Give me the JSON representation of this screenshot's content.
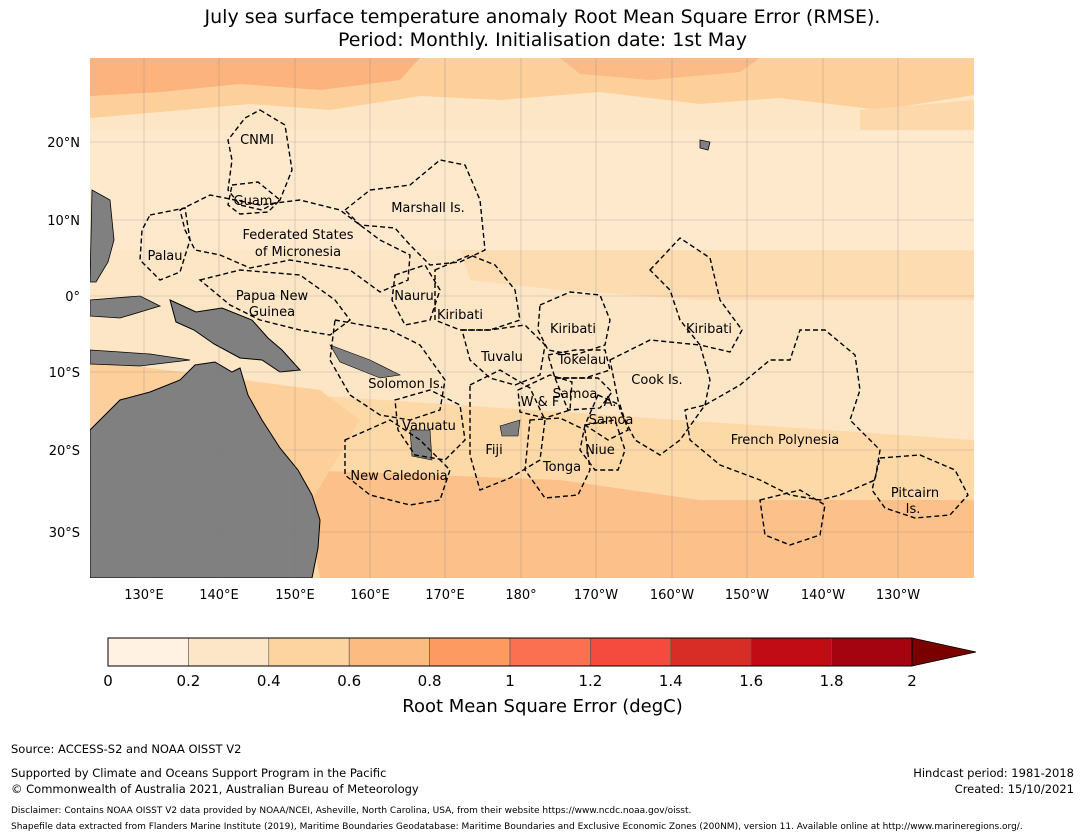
{
  "title": {
    "line1": "July sea surface temperature anomaly Root Mean Square Error (RMSE).",
    "line2": "Period: Monthly. Initialisation date: 1st May"
  },
  "map": {
    "lat_ticks": [
      "20°N",
      "10°N",
      "0°",
      "10°S",
      "20°S",
      "30°S"
    ],
    "lon_ticks": [
      "130°E",
      "140°E",
      "150°E",
      "160°E",
      "170°E",
      "180°",
      "170°W",
      "160°W",
      "150°W",
      "140°W",
      "130°W"
    ],
    "regions": [
      "CNMI",
      "Guam",
      "Marshall Is.",
      "Federated States",
      "of Micronesia",
      "Palau",
      "Papua New",
      "Guinea",
      "Nauru",
      "Kiribati",
      "Kiribati",
      "Kiribati",
      "Tuvalu",
      "Tokelau",
      "Cook Is.",
      "Solomon Is.",
      "Samoa",
      "W & F",
      "A.",
      "Samoa",
      "Vanuatu",
      "Fiji",
      "Niue",
      "Tonga",
      "French Polynesia",
      "New Caledonia",
      "Pitcairn",
      "Is."
    ],
    "colors": {
      "ocean_low": "#fdebd0",
      "ocean_mid": "#fdd9a8",
      "ocean_high": "#fcb07b",
      "land": "#808080"
    }
  },
  "colorbar": {
    "ticks": [
      "0",
      "0.2",
      "0.4",
      "0.6",
      "0.8",
      "1",
      "1.2",
      "1.4",
      "1.6",
      "1.8",
      "2"
    ],
    "colors": [
      "#fff2e2",
      "#fde5c7",
      "#fdd49f",
      "#fcbb81",
      "#fc9a62",
      "#fb7050",
      "#f54b3e",
      "#d82d26",
      "#c10c16",
      "#a40310",
      "#7a0000"
    ],
    "label": "Root Mean Square Error (degC)"
  },
  "footer": {
    "source": "Source: ACCESS-S2 and NOAA OISST V2",
    "support": "Supported by Climate and Oceans Support Program in the Pacific",
    "copyright": "© Commonwealth of Australia 2021, Australian Bureau of Meteorology",
    "hindcast": "Hindcast period: 1981-2018",
    "created": "Created: 15/10/2021",
    "disclaimer": "Disclaimer: Contains NOAA OISST V2 data provided by NOAA/NCEI, Asheville, North Carolina, USA, from their website https://www.ncdc.noaa.gov/oisst.",
    "shapefile": "Shapefile data extracted from Flanders Marine Institute (2019), Maritime Boundaries Geodatabase: Maritime Boundaries and Exclusive Economic Zones (200NM), version 11. Available online at http://www.marineregions.org/."
  }
}
